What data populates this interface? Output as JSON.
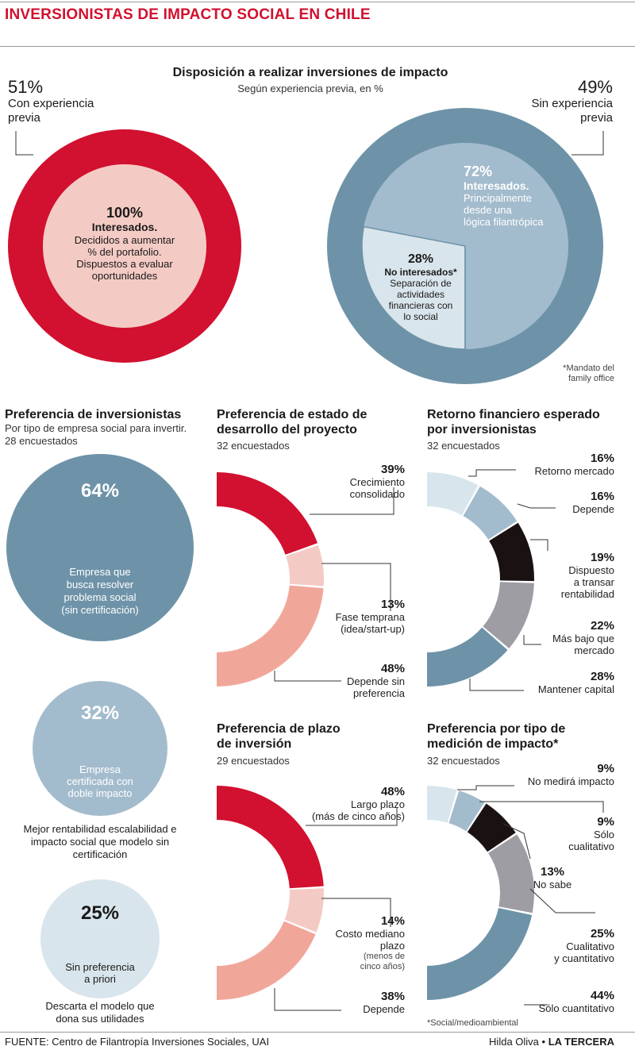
{
  "title": "INVERSIONISTAS DE IMPACTO SOCIAL EN CHILE",
  "colors": {
    "red": "#d2102f",
    "pink": "#f4cbc4",
    "salmon": "#f0a79a",
    "blue": "#6e93a8",
    "lightblue": "#a3bccd",
    "palest": "#d9e5ec",
    "black": "#1a1212",
    "gray": "#9d9da3"
  },
  "section1": {
    "title": "Disposición a realizar inversiones de impacto",
    "subtitle": "Según experiencia previa, en %",
    "left": {
      "pct": "51%",
      "label": "Con experiencia\nprevia",
      "inner_pct": "100%",
      "inner_title": "Interesados.",
      "inner_text": "Decididos a aumentar\n% del portafolio.\nDispuestos a evaluar\noportunidades"
    },
    "right": {
      "pct": "49%",
      "label": "Sin experiencia\nprevia",
      "int_pct": "72%",
      "int_title": "Interesados.",
      "int_text": "Principalmente\ndesde una\nlógica filantrópica",
      "no_pct": "28%",
      "no_title": "No interesados*",
      "no_text": "Separación de\nactividades\nfinancieras con\nlo social",
      "footnote": "*Mandato del\nfamily office"
    }
  },
  "col1": {
    "title": "Preferencia de inversionistas",
    "subtitle": "Por tipo de empresa social para invertir.\n28 encuestados",
    "b1": {
      "pct": "64%",
      "label": "Empresa que\nbusca resolver\nproblema social\n(sin certificación)"
    },
    "b2": {
      "pct": "32%",
      "label": "Empresa\ncertificada con\ndoble impacto",
      "note": "Mejor rentabilidad escalabilidad e\nimpacto  social que modelo sin\ncertificación"
    },
    "b3": {
      "pct": "25%",
      "label": "Sin preferencia\na priori",
      "note": "Descarta el modelo que\ndona sus utilidades"
    }
  },
  "col2a": {
    "title": "Preferencia de estado de\ndesarrollo del proyecto",
    "subtitle": "32 encuestados",
    "items": [
      {
        "pct": "39%",
        "label": "Crecimiento\nconsolidado"
      },
      {
        "pct": "13%",
        "label": "Fase temprana\n(idea/start-up)"
      },
      {
        "pct": "48%",
        "label": "Depende sin\npreferencia"
      }
    ]
  },
  "col2b": {
    "title": "Preferencia de plazo\nde inversión",
    "subtitle": "29 encuestados",
    "items": [
      {
        "pct": "48%",
        "label": "Largo plazo",
        "note": "(más de cinco años)"
      },
      {
        "pct": "14%",
        "label": "Costo mediano\nplazo",
        "note": "(menos de\ncinco años)"
      },
      {
        "pct": "38%",
        "label": "Depende",
        "note": ""
      }
    ]
  },
  "col3a": {
    "title": "Retorno financiero esperado\npor inversionistas",
    "subtitle": "32 encuestados",
    "items": [
      {
        "pct": "16%",
        "label": "Retorno mercado"
      },
      {
        "pct": "16%",
        "label": "Depende"
      },
      {
        "pct": "19%",
        "label": "Dispuesto\na transar\nrentabilidad"
      },
      {
        "pct": "22%",
        "label": "Más bajo que\nmercado"
      },
      {
        "pct": "28%",
        "label": "Mantener capital"
      }
    ]
  },
  "col3b": {
    "title": "Preferencia por tipo de\nmedición de impacto*",
    "subtitle": "32 encuestados",
    "items": [
      {
        "pct": "9%",
        "label": "No medirá impacto"
      },
      {
        "pct": "9%",
        "label": "Sólo\ncualitativo"
      },
      {
        "pct": "13%",
        "label": "No sabe"
      },
      {
        "pct": "25%",
        "label": "Cualitativo\ny cuantitativo"
      },
      {
        "pct": "44%",
        "label": "Sólo cuantitativo"
      }
    ],
    "footnote": "*Social/medioambiental"
  },
  "footer": {
    "source": "FUENTE: Centro de Filantropía Inversiones Sociales, UAI",
    "author": "Hilda Oliva",
    "outlet": "LA TERCERA"
  },
  "chart_data": [
    {
      "type": "pie",
      "title": "Disposición a realizar inversiones de impacto",
      "subtitle": "Según experiencia previa, en %",
      "categories": [
        "Con experiencia previa",
        "Sin experiencia previa"
      ],
      "values": [
        51,
        49
      ]
    },
    {
      "type": "pie",
      "categories": [
        "Interesados",
        "No interesados"
      ],
      "values": [
        72,
        28
      ]
    },
    {
      "type": "pie",
      "title": "Preferencia de inversionistas",
      "categories": [
        "Empresa que busca resolver problema social (sin certificación)",
        "Empresa certificada con doble impacto",
        "Sin preferencia a priori"
      ],
      "values": [
        64,
        32,
        25
      ]
    },
    {
      "type": "pie",
      "title": "Preferencia de estado de desarrollo del proyecto",
      "categories": [
        "Crecimiento consolidado",
        "Fase temprana (idea/start-up)",
        "Depende sin preferencia"
      ],
      "values": [
        39,
        13,
        48
      ]
    },
    {
      "type": "pie",
      "title": "Preferencia de plazo de inversión",
      "categories": [
        "Largo plazo",
        "Costo mediano plazo",
        "Depende"
      ],
      "values": [
        48,
        14,
        38
      ]
    },
    {
      "type": "pie",
      "title": "Retorno financiero esperado por inversionistas",
      "categories": [
        "Retorno mercado",
        "Depende",
        "Dispuesto a transar rentabilidad",
        "Más bajo que mercado",
        "Mantener capital"
      ],
      "values": [
        16,
        16,
        19,
        22,
        28
      ]
    },
    {
      "type": "pie",
      "title": "Preferencia por tipo de medición de impacto*",
      "categories": [
        "No medirá impacto",
        "Sólo cualitativo",
        "No sabe",
        "Cualitativo y cuantitativo",
        "Sólo cuantitativo"
      ],
      "values": [
        9,
        9,
        13,
        25,
        44
      ]
    }
  ]
}
